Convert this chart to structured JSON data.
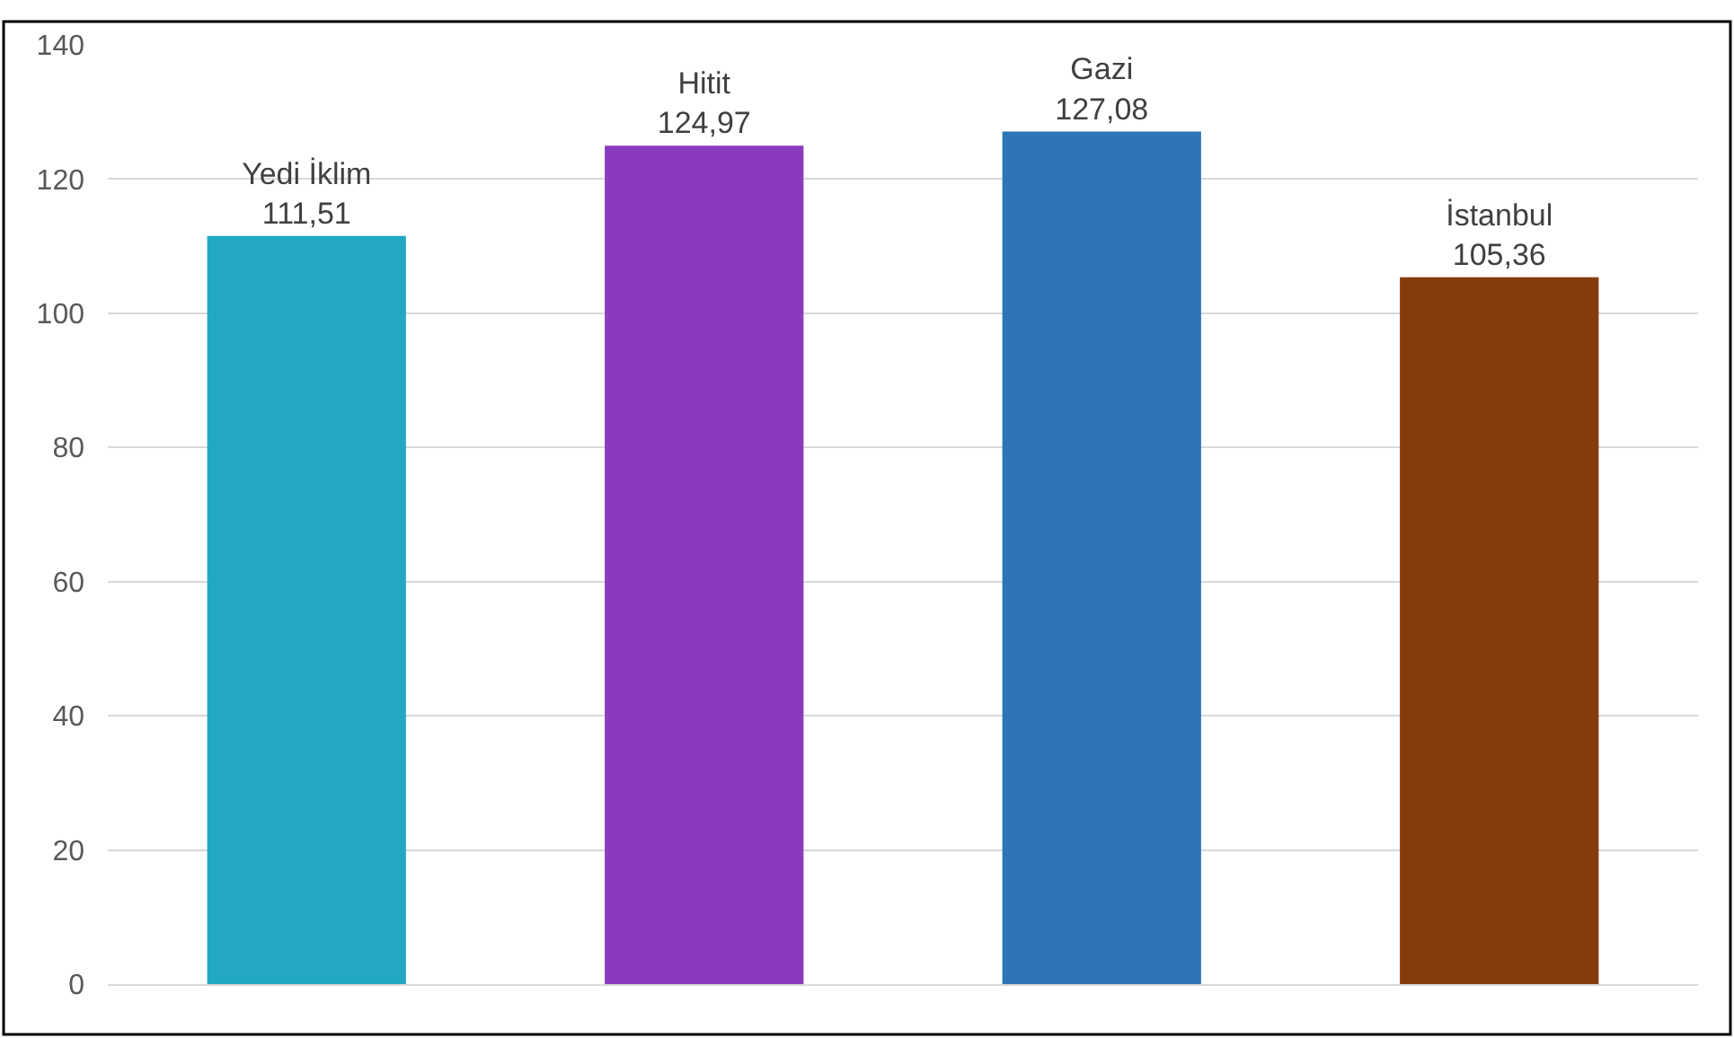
{
  "chart_data": {
    "type": "bar",
    "categories": [
      "Yedi İklim",
      "Hitit",
      "Gazi",
      "İstanbul"
    ],
    "values": [
      111.51,
      124.97,
      127.08,
      105.36
    ],
    "colors": [
      "#23a8c4",
      "#8a3abf",
      "#2e75b6",
      "#843c0c"
    ],
    "value_labels": [
      "111,51",
      "124,97",
      "127,08",
      "105,36"
    ],
    "ylim": [
      0,
      140
    ],
    "yticks": [
      0,
      20,
      40,
      60,
      80,
      100,
      120,
      140
    ],
    "grid": "y",
    "tick_labels": "y"
  }
}
